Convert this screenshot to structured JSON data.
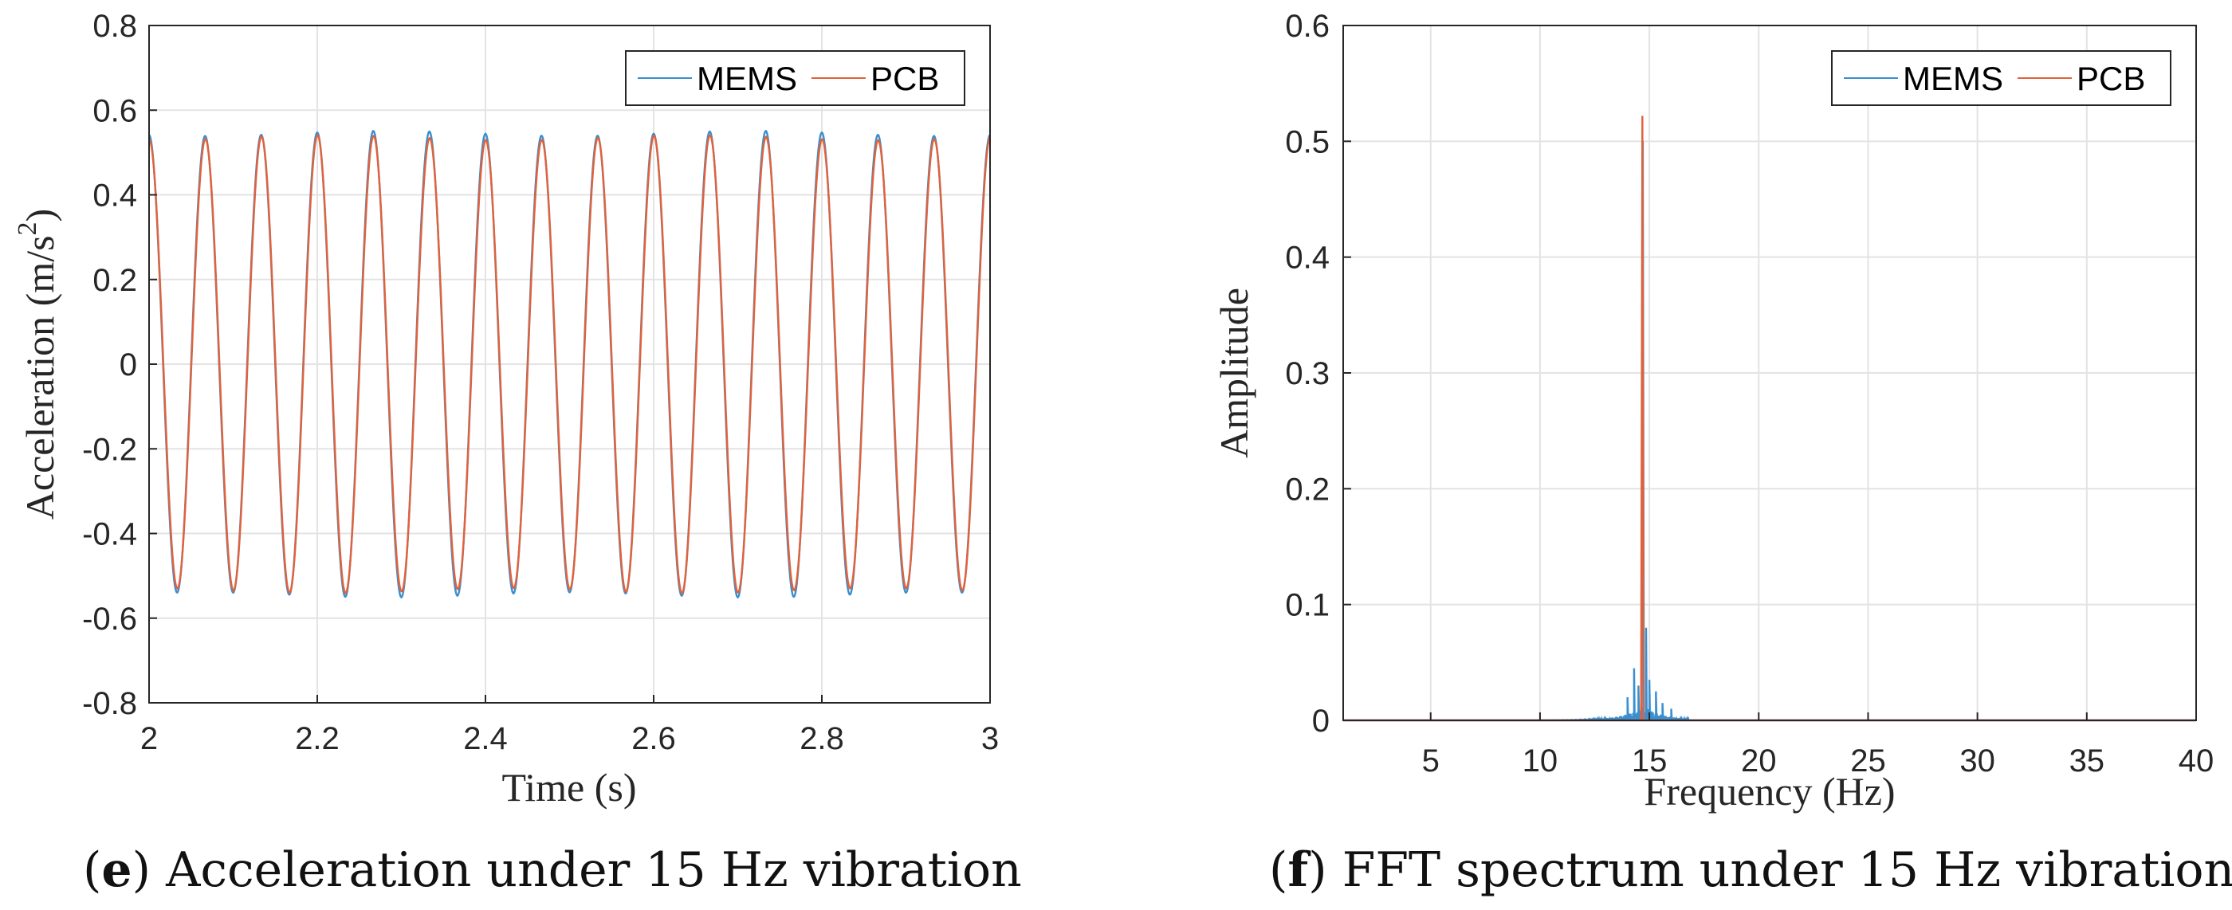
{
  "colors": {
    "mems": "#3a8fd0",
    "pcb": "#e0623c",
    "grid": "#e3e3e3",
    "axis": "#262626"
  },
  "captions": {
    "left_letter": "e",
    "left_text": "Acceleration under 15 Hz vibration",
    "right_letter": "f",
    "right_text": "FFT spectrum under 15 Hz vibration"
  },
  "chart_data": [
    {
      "type": "line",
      "title": "",
      "xlabel": "Time (s)",
      "ylabel_main": "Acceleration (m/s",
      "ylabel_sup": "2",
      "ylabel_close": ")",
      "xlim": [
        2,
        3
      ],
      "ylim": [
        -0.8,
        0.8
      ],
      "xticks": [
        "2",
        "2.2",
        "2.4",
        "2.6",
        "2.8",
        "3"
      ],
      "xtick_values": [
        2,
        2.2,
        2.4,
        2.6,
        2.8,
        3
      ],
      "yticks": [
        "0.8",
        "0.6",
        "0.4",
        "0.2",
        "0",
        "-0.2",
        "-0.4",
        "-0.6",
        "-0.8"
      ],
      "ytick_values": [
        0.8,
        0.6,
        0.4,
        0.2,
        0,
        -0.2,
        -0.4,
        -0.6,
        -0.8
      ],
      "grid": true,
      "legend": [
        "MEMS",
        "PCB"
      ],
      "legend_position": "top-right",
      "series": [
        {
          "name": "MEMS",
          "frequency_hz": 15,
          "amplitude": 0.545,
          "phase_cycles": 0.25,
          "x_range": [
            2,
            3
          ]
        },
        {
          "name": "PCB",
          "frequency_hz": 15,
          "amplitude": 0.535,
          "phase_cycles": 0.245,
          "x_range": [
            2,
            3
          ]
        }
      ]
    },
    {
      "type": "line",
      "title": "",
      "xlabel": "Frequency (Hz)",
      "ylabel": "Amplitude",
      "xlim": [
        1,
        40
      ],
      "ylim": [
        0,
        0.6
      ],
      "xticks": [
        "5",
        "10",
        "15",
        "20",
        "25",
        "30",
        "35",
        "40"
      ],
      "xtick_values": [
        5,
        10,
        15,
        20,
        25,
        30,
        35,
        40
      ],
      "yticks": [
        "0.6",
        "0.5",
        "0.4",
        "0.3",
        "0.2",
        "0.1",
        "0"
      ],
      "ytick_values": [
        0.6,
        0.5,
        0.4,
        0.3,
        0.2,
        0.1,
        0
      ],
      "grid": true,
      "legend": [
        "MEMS",
        "PCB"
      ],
      "legend_position": "top-right",
      "series": [
        {
          "name": "MEMS",
          "peak_frequency": 14.7,
          "peak_amplitude": 0.5,
          "sidebands": [
            [
              14.0,
              0.02
            ],
            [
              14.3,
              0.045
            ],
            [
              14.5,
              0.03
            ],
            [
              14.85,
              0.08
            ],
            [
              15.0,
              0.035
            ],
            [
              15.3,
              0.025
            ],
            [
              15.6,
              0.015
            ],
            [
              16.0,
              0.01
            ]
          ]
        },
        {
          "name": "PCB",
          "peak_frequency": 14.68,
          "peak_amplitude": 0.522
        }
      ]
    }
  ]
}
